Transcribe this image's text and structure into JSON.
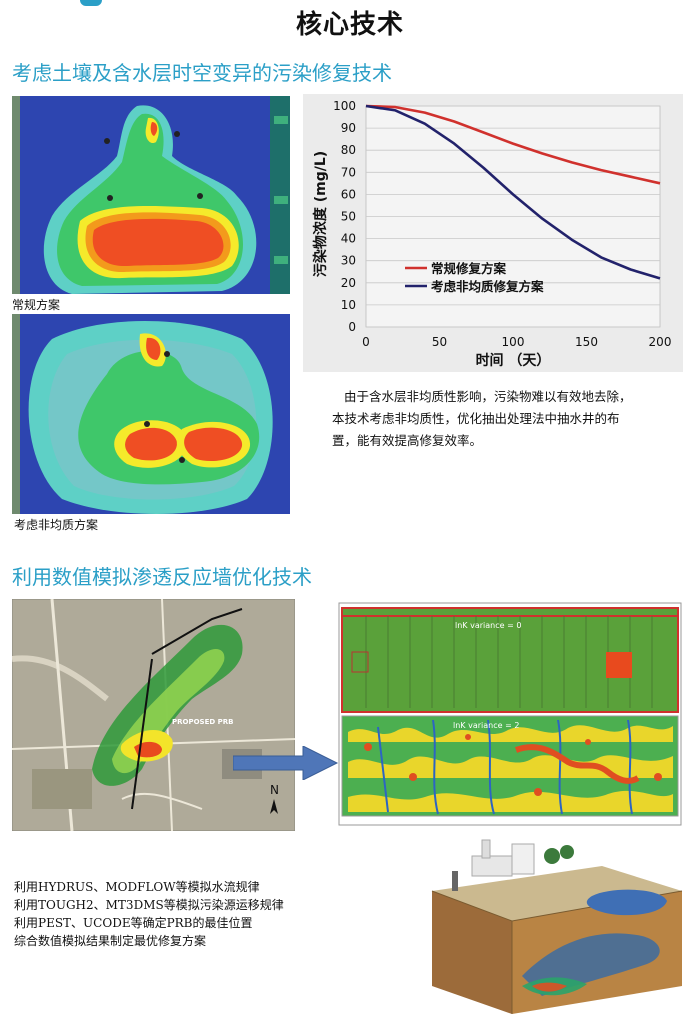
{
  "page": {
    "title": "核心技术"
  },
  "section1": {
    "title": "考虑土壤及含水层时空变异的污染修复技术",
    "map1_label": "常规方案",
    "map2_label": "考虑非均质方案",
    "description": [
      "由于含水层非均质性影响，污染物难以有效地去除，",
      "本技术考虑非均质性，优化抽出处理法中抽水井的布",
      "置，能有效提高修复效率。"
    ]
  },
  "section2": {
    "title": "利用数值模拟渗透反应墙优化技术",
    "site_map_label": "PROPOSED PRB",
    "panel_top_label": "lnK variance = 0",
    "panel_bottom_label": "lnK variance = 2",
    "methods": [
      "利用HYDRUS、MODFLOW等模拟水流规律",
      "利用TOUGH2、MT3DMS等模拟污染源运移规律",
      "利用PEST、UCODE等确定PRB的最佳位置",
      "综合数值模拟结果制定最优修复方案"
    ]
  },
  "chart_data": {
    "type": "line",
    "title": "",
    "xlabel": "时间 （天）",
    "ylabel": "污染物浓度 (mg/L)",
    "xlim": [
      0,
      200
    ],
    "ylim": [
      0,
      100
    ],
    "xticks": [
      0,
      50,
      100,
      150,
      200
    ],
    "yticks": [
      0,
      10,
      20,
      30,
      40,
      50,
      60,
      70,
      80,
      90,
      100
    ],
    "grid": true,
    "legend_position": "bottom-left",
    "series": [
      {
        "name": "常规修复方案",
        "color": "#d0312d",
        "x": [
          0,
          20,
          40,
          60,
          80,
          100,
          120,
          140,
          160,
          180,
          200
        ],
        "y": [
          100,
          99.5,
          97,
          93,
          88,
          83,
          78.5,
          74.5,
          71,
          68,
          65
        ]
      },
      {
        "name": "考虑非均质修复方案",
        "color": "#22226b",
        "x": [
          0,
          20,
          40,
          60,
          80,
          100,
          120,
          140,
          160,
          180,
          200
        ],
        "y": [
          100,
          98,
          92,
          83,
          72,
          60,
          49,
          39.5,
          31.5,
          26,
          22
        ]
      }
    ]
  }
}
